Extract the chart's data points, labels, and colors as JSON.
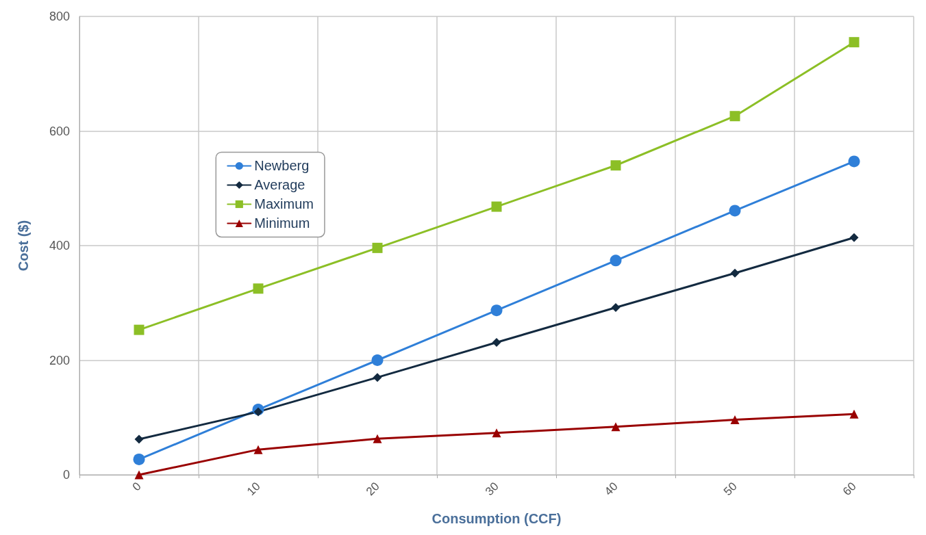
{
  "chart_data": {
    "type": "line",
    "xlabel": "Consumption (CCF)",
    "ylabel": "Cost ($)",
    "categories": [
      "0",
      "10",
      "20",
      "30",
      "40",
      "50",
      "60"
    ],
    "series": [
      {
        "name": "Newberg",
        "color": "#2f7fd8",
        "marker": "circle",
        "values": [
          27,
          114,
          200,
          287,
          374,
          461,
          547
        ]
      },
      {
        "name": "Average",
        "color": "#132a40",
        "marker": "diamond",
        "values": [
          62,
          110,
          170,
          231,
          292,
          352,
          414
        ]
      },
      {
        "name": "Maximum",
        "color": "#8cbf26",
        "marker": "square",
        "values": [
          253,
          325,
          396,
          468,
          540,
          626,
          755
        ]
      },
      {
        "name": "Minimum",
        "color": "#990000",
        "marker": "triangle",
        "values": [
          0,
          44,
          63,
          73,
          84,
          96,
          106
        ]
      }
    ],
    "ylim": [
      0,
      800
    ],
    "yticks": [
      0,
      200,
      400,
      600,
      800
    ],
    "grid": true,
    "legend": "top left",
    "line_style": "solid"
  }
}
